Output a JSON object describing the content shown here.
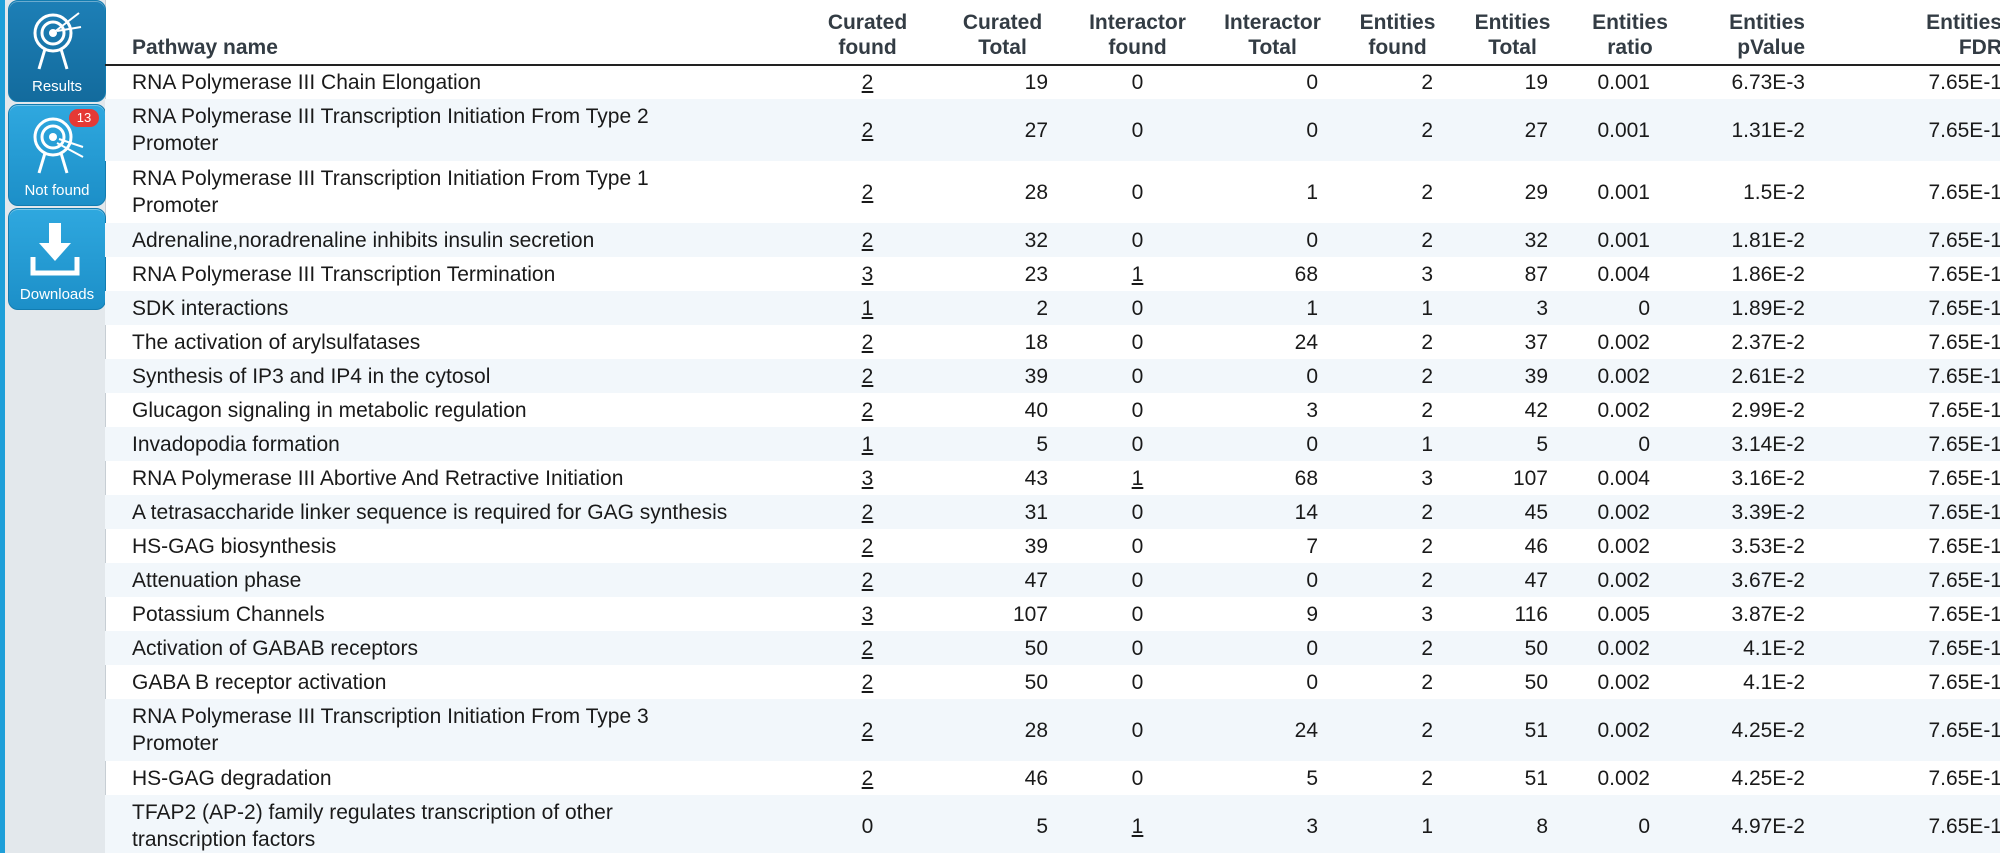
{
  "sidebar": {
    "results_label": "Results",
    "not_found_label": "Not found",
    "not_found_count": "13",
    "downloads_label": "Downloads"
  },
  "table": {
    "headers": {
      "name": "Pathway name",
      "curated_found": [
        "Curated",
        "found"
      ],
      "curated_total": [
        "Curated",
        "Total"
      ],
      "interactor_found": [
        "Interactor",
        "found"
      ],
      "interactor_total": [
        "Interactor",
        "Total"
      ],
      "entities_found": [
        "Entities",
        "found"
      ],
      "entities_total": [
        "Entities",
        "Total"
      ],
      "entities_ratio": [
        "Entities",
        "ratio"
      ],
      "entities_pvalue": [
        "Entities",
        "pValue"
      ],
      "entities_fdr": [
        "Entities",
        "FDR"
      ]
    },
    "rows": [
      {
        "name": "RNA Polymerase III Chain Elongation",
        "cf": "2",
        "ct": "19",
        "if": "0",
        "it": "0",
        "ef": "2",
        "et": "19",
        "er": "0.001",
        "ep": "6.73E-3",
        "fdr": "7.65E-1"
      },
      {
        "name": "RNA Polymerase III Transcription Initiation From Type 2 Promoter",
        "cf": "2",
        "ct": "27",
        "if": "0",
        "it": "0",
        "ef": "2",
        "et": "27",
        "er": "0.001",
        "ep": "1.31E-2",
        "fdr": "7.65E-1"
      },
      {
        "name": "RNA Polymerase III Transcription Initiation From Type 1 Promoter",
        "cf": "2",
        "ct": "28",
        "if": "0",
        "it": "1",
        "ef": "2",
        "et": "29",
        "er": "0.001",
        "ep": "1.5E-2",
        "fdr": "7.65E-1"
      },
      {
        "name": "Adrenaline,noradrenaline inhibits insulin secretion",
        "cf": "2",
        "ct": "32",
        "if": "0",
        "it": "0",
        "ef": "2",
        "et": "32",
        "er": "0.001",
        "ep": "1.81E-2",
        "fdr": "7.65E-1"
      },
      {
        "name": "RNA Polymerase III Transcription Termination",
        "cf": "3",
        "ct": "23",
        "if": "1",
        "it": "68",
        "ef": "3",
        "et": "87",
        "er": "0.004",
        "ep": "1.86E-2",
        "fdr": "7.65E-1"
      },
      {
        "name": "SDK interactions",
        "cf": "1",
        "ct": "2",
        "if": "0",
        "it": "1",
        "ef": "1",
        "et": "3",
        "er": "0",
        "ep": "1.89E-2",
        "fdr": "7.65E-1"
      },
      {
        "name": "The activation of arylsulfatases",
        "cf": "2",
        "ct": "18",
        "if": "0",
        "it": "24",
        "ef": "2",
        "et": "37",
        "er": "0.002",
        "ep": "2.37E-2",
        "fdr": "7.65E-1"
      },
      {
        "name": "Synthesis of IP3 and IP4 in the cytosol",
        "cf": "2",
        "ct": "39",
        "if": "0",
        "it": "0",
        "ef": "2",
        "et": "39",
        "er": "0.002",
        "ep": "2.61E-2",
        "fdr": "7.65E-1"
      },
      {
        "name": "Glucagon signaling in metabolic regulation",
        "cf": "2",
        "ct": "40",
        "if": "0",
        "it": "3",
        "ef": "2",
        "et": "42",
        "er": "0.002",
        "ep": "2.99E-2",
        "fdr": "7.65E-1"
      },
      {
        "name": "Invadopodia formation",
        "cf": "1",
        "ct": "5",
        "if": "0",
        "it": "0",
        "ef": "1",
        "et": "5",
        "er": "0",
        "ep": "3.14E-2",
        "fdr": "7.65E-1"
      },
      {
        "name": "RNA Polymerase III Abortive And Retractive Initiation",
        "cf": "3",
        "ct": "43",
        "if": "1",
        "it": "68",
        "ef": "3",
        "et": "107",
        "er": "0.004",
        "ep": "3.16E-2",
        "fdr": "7.65E-1"
      },
      {
        "name": "A tetrasaccharide linker sequence is required for GAG synthesis",
        "cf": "2",
        "ct": "31",
        "if": "0",
        "it": "14",
        "ef": "2",
        "et": "45",
        "er": "0.002",
        "ep": "3.39E-2",
        "fdr": "7.65E-1"
      },
      {
        "name": "HS-GAG biosynthesis",
        "cf": "2",
        "ct": "39",
        "if": "0",
        "it": "7",
        "ef": "2",
        "et": "46",
        "er": "0.002",
        "ep": "3.53E-2",
        "fdr": "7.65E-1"
      },
      {
        "name": "Attenuation phase",
        "cf": "2",
        "ct": "47",
        "if": "0",
        "it": "0",
        "ef": "2",
        "et": "47",
        "er": "0.002",
        "ep": "3.67E-2",
        "fdr": "7.65E-1"
      },
      {
        "name": "Potassium Channels",
        "cf": "3",
        "ct": "107",
        "if": "0",
        "it": "9",
        "ef": "3",
        "et": "116",
        "er": "0.005",
        "ep": "3.87E-2",
        "fdr": "7.65E-1"
      },
      {
        "name": "Activation of GABAB receptors",
        "cf": "2",
        "ct": "50",
        "if": "0",
        "it": "0",
        "ef": "2",
        "et": "50",
        "er": "0.002",
        "ep": "4.1E-2",
        "fdr": "7.65E-1"
      },
      {
        "name": "GABA B receptor activation",
        "cf": "2",
        "ct": "50",
        "if": "0",
        "it": "0",
        "ef": "2",
        "et": "50",
        "er": "0.002",
        "ep": "4.1E-2",
        "fdr": "7.65E-1"
      },
      {
        "name": "RNA Polymerase III Transcription Initiation From Type 3 Promoter",
        "cf": "2",
        "ct": "28",
        "if": "0",
        "it": "24",
        "ef": "2",
        "et": "51",
        "er": "0.002",
        "ep": "4.25E-2",
        "fdr": "7.65E-1"
      },
      {
        "name": "HS-GAG degradation",
        "cf": "2",
        "ct": "46",
        "if": "0",
        "it": "5",
        "ef": "2",
        "et": "51",
        "er": "0.002",
        "ep": "4.25E-2",
        "fdr": "7.65E-1"
      },
      {
        "name": "TFAP2 (AP-2) family regulates transcription of other transcription factors",
        "cf": "0",
        "ct": "5",
        "if": "1",
        "it": "3",
        "ef": "1",
        "et": "8",
        "er": "0",
        "ep": "4.97E-2",
        "fdr": "7.65E-1"
      }
    ]
  }
}
